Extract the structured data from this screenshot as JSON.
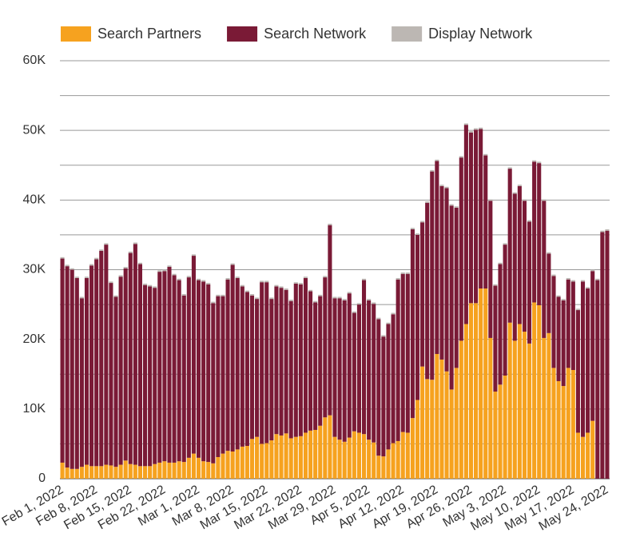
{
  "chart_data": {
    "type": "stacked_bar",
    "categories": [
      "Feb 1, 2022",
      null,
      null,
      null,
      null,
      null,
      null,
      "Feb 8, 2022",
      null,
      null,
      null,
      null,
      null,
      null,
      "Feb 15, 2022",
      null,
      null,
      null,
      null,
      null,
      null,
      "Feb 22, 2022",
      null,
      null,
      null,
      null,
      null,
      null,
      "Mar 1, 2022",
      null,
      null,
      null,
      null,
      null,
      null,
      "Mar 8, 2022",
      null,
      null,
      null,
      null,
      null,
      null,
      "Mar 15, 2022",
      null,
      null,
      null,
      null,
      null,
      null,
      "Mar 22, 2022",
      null,
      null,
      null,
      null,
      null,
      null,
      "Mar 29, 2022",
      null,
      null,
      null,
      null,
      null,
      null,
      "Apr 5, 2022",
      null,
      null,
      null,
      null,
      null,
      null,
      "Apr 12, 2022",
      null,
      null,
      null,
      null,
      null,
      null,
      "Apr 19, 2022",
      null,
      null,
      null,
      null,
      null,
      null,
      "Apr 26, 2022",
      null,
      null,
      null,
      null,
      null,
      null,
      "May 3, 2022",
      null,
      null,
      null,
      null,
      null,
      null,
      "May 10, 2022",
      null,
      null,
      null,
      null,
      null,
      null,
      "May 17, 2022",
      null,
      null,
      null,
      null,
      null,
      null,
      "May 24, 2022"
    ],
    "series": [
      {
        "name": "Search Partners",
        "color": "#f6a21f",
        "values": [
          2300,
          1600,
          1400,
          1400,
          1700,
          2000,
          1800,
          1800,
          1800,
          2000,
          1900,
          1700,
          2000,
          2600,
          2100,
          2000,
          1800,
          1800,
          1800,
          2100,
          2300,
          2500,
          2300,
          2300,
          2500,
          2400,
          3000,
          3600,
          3000,
          2500,
          2400,
          2200,
          3100,
          3600,
          4000,
          3900,
          4200,
          4600,
          4700,
          5700,
          6000,
          5000,
          5100,
          5500,
          6400,
          6200,
          6500,
          5800,
          6000,
          6100,
          6600,
          6900,
          7000,
          7600,
          8800,
          9100,
          6000,
          5600,
          5300,
          5900,
          6800,
          6600,
          6400,
          5600,
          5200,
          3300,
          3200,
          4200,
          5100,
          5400,
          6700,
          6600,
          8700,
          11300,
          16100,
          14300,
          14200,
          17900,
          17100,
          15400,
          12800,
          15900,
          19800,
          22200,
          25200,
          25200,
          27300,
          27300,
          20200,
          12500,
          13500,
          14800,
          22400,
          19800,
          22200,
          21100,
          19400,
          25300,
          24900,
          20200,
          20900,
          15900,
          14000,
          13300,
          15900,
          15600,
          6600,
          6000,
          6600,
          8300,
          0,
          0,
          0
        ]
      },
      {
        "name": "Search Network",
        "color": "#7a1a36",
        "values": [
          29300,
          28900,
          28600,
          27400,
          24200,
          26800,
          28800,
          29700,
          30900,
          31600,
          26200,
          24400,
          27000,
          27600,
          30300,
          31700,
          29000,
          26000,
          25800,
          25300,
          27400,
          27300,
          28100,
          26900,
          26000,
          23900,
          25900,
          28400,
          25500,
          25800,
          25500,
          23000,
          23100,
          22600,
          24600,
          26800,
          24600,
          23000,
          22100,
          20600,
          19800,
          23200,
          23100,
          20300,
          21200,
          21200,
          20600,
          19700,
          22000,
          21800,
          22200,
          20000,
          18300,
          18600,
          20100,
          27300,
          19900,
          20300,
          20300,
          20700,
          17000,
          18400,
          22100,
          20000,
          19900,
          19600,
          17200,
          18000,
          18500,
          23200,
          22700,
          22800,
          27100,
          23700,
          20700,
          25300,
          29900,
          27700,
          24900,
          26300,
          26400,
          23000,
          26300,
          28600,
          24500,
          24900,
          22900,
          19100,
          19700,
          15200,
          17300,
          18800,
          22100,
          21100,
          19800,
          18800,
          17500,
          20200,
          20400,
          19700,
          11400,
          13200,
          12100,
          12300,
          12700,
          12700,
          17600,
          22300,
          20700,
          21500,
          28500,
          35400,
          35600
        ]
      },
      {
        "name": "Display Network",
        "color": "#bcb7b3",
        "values": [
          200,
          200,
          200,
          200,
          200,
          200,
          200,
          200,
          200,
          200,
          200,
          200,
          200,
          200,
          200,
          200,
          200,
          200,
          200,
          200,
          200,
          200,
          200,
          200,
          200,
          200,
          200,
          200,
          200,
          200,
          200,
          200,
          200,
          200,
          200,
          200,
          200,
          200,
          200,
          200,
          200,
          200,
          200,
          200,
          200,
          200,
          200,
          200,
          200,
          200,
          200,
          200,
          200,
          200,
          200,
          200,
          200,
          200,
          200,
          200,
          200,
          200,
          200,
          200,
          200,
          200,
          200,
          200,
          200,
          200,
          200,
          200,
          200,
          200,
          200,
          200,
          200,
          200,
          200,
          200,
          200,
          200,
          200,
          200,
          200,
          200,
          200,
          200,
          200,
          200,
          200,
          200,
          200,
          200,
          200,
          200,
          200,
          200,
          200,
          200,
          200,
          200,
          200,
          200,
          200,
          200,
          200,
          200,
          200,
          200,
          200,
          200,
          200
        ]
      }
    ],
    "ylim": [
      0,
      60000
    ],
    "yticks": [
      0,
      {
        "value": 10000,
        "label": "10K"
      },
      {
        "value": 20000,
        "label": "20K"
      },
      {
        "value": 30000,
        "label": "30K"
      },
      {
        "value": 40000,
        "label": "40K"
      },
      {
        "value": 50000,
        "label": "50K"
      },
      {
        "value": 60000,
        "label": "60K"
      }
    ],
    "grid": true,
    "minor_grid": true,
    "legend": "top-left"
  }
}
